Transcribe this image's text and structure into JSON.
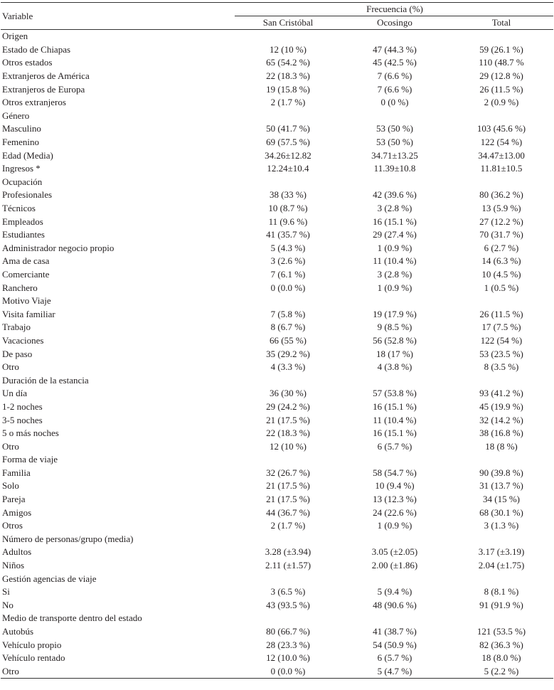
{
  "table": {
    "header": {
      "variable": "Variable",
      "group": "Frecuencia (%)",
      "columns": [
        "San Cristóbal",
        "Ocosingo",
        "Total"
      ]
    },
    "rows": [
      [
        "Origen"
      ],
      [
        "Estado de Chiapas",
        "12 (10 %)",
        "47 (44.3 %)",
        "59 (26.1 %)"
      ],
      [
        "Otros estados",
        "65 (54.2 %)",
        "45 (42.5 %)",
        "110 (48.7 %"
      ],
      [
        "Extranjeros de América",
        "22 (18.3 %)",
        "7 (6.6 %)",
        "29 (12.8 %)"
      ],
      [
        "Extranjeros de Europa",
        "19 (15.8 %)",
        "7 (6.6 %)",
        "26 (11.5 %)"
      ],
      [
        "Otros extranjeros",
        "2 (1.7 %)",
        "0 (0 %)",
        "2 (0.9 %)"
      ],
      [
        "Género"
      ],
      [
        "Masculino",
        "50 (41.7 %)",
        "53 (50 %)",
        "103 (45.6 %)"
      ],
      [
        "Femenino",
        "69 (57.5 %)",
        "53 (50 %)",
        "122 (54 %)"
      ],
      [
        "Edad (Media)",
        "34.26±12.82",
        "34.71±13.25",
        "34.47±13.00"
      ],
      [
        "Ingresos *",
        "12.24±10.4",
        "11.39±10.8",
        "11.81±10.5"
      ],
      [
        "Ocupación"
      ],
      [
        "Profesionales",
        "38 (33 %)",
        "42 (39.6 %)",
        "80 (36.2 %)"
      ],
      [
        "Técnicos",
        "10 (8.7 %)",
        "3 (2.8 %)",
        "13 (5.9 %)"
      ],
      [
        "Empleados",
        "11 (9.6 %)",
        "16 (15.1 %)",
        "27 (12.2 %)"
      ],
      [
        "Estudiantes",
        "41 (35.7 %)",
        "29 (27.4 %)",
        "70 (31.7 %)"
      ],
      [
        "Administrador negocio propio",
        "5 (4.3 %)",
        "1 (0.9 %)",
        "6 (2.7 %)"
      ],
      [
        "Ama de casa",
        "3 (2.6 %)",
        "11 (10.4 %)",
        "14 (6.3 %)"
      ],
      [
        "Comerciante",
        "7 (6.1 %)",
        "3 (2.8 %)",
        "10 (4.5 %)"
      ],
      [
        "Ranchero",
        "0 (0.0 %)",
        "1 (0.9 %)",
        "1 (0.5 %)"
      ],
      [
        "Motivo Viaje"
      ],
      [
        "Visita familiar",
        "7 (5.8 %)",
        "19 (17.9 %)",
        "26 (11.5 %)"
      ],
      [
        "Trabajo",
        "8 (6.7 %)",
        "9 (8.5 %)",
        "17 (7.5 %)"
      ],
      [
        "Vacaciones",
        "66 (55 %)",
        "56 (52.8 %)",
        "122 (54 %)"
      ],
      [
        "De paso",
        "35 (29.2 %)",
        "18 (17 %)",
        "53 (23.5 %)"
      ],
      [
        "Otro",
        "4 (3.3 %)",
        "4 (3.8 %)",
        "8 (3.5 %)"
      ],
      [
        "Duración de la estancia"
      ],
      [
        "Un día",
        "36 (30 %)",
        "57 (53.8 %)",
        "93 (41.2 %)"
      ],
      [
        "1-2 noches",
        "29 (24.2 %)",
        "16 (15.1 %)",
        "45 (19.9 %)"
      ],
      [
        "3-5 noches",
        "21 (17.5 %)",
        "11 (10.4 %)",
        "32 (14.2 %)"
      ],
      [
        "5 o más noches",
        "22 (18.3 %)",
        "16 (15.1 %)",
        "38 (16.8 %)"
      ],
      [
        "Otro",
        "12 (10 %)",
        "6 (5.7 %)",
        "18 (8 %)"
      ],
      [
        "Forma de viaje"
      ],
      [
        "Familia",
        "32 (26.7 %)",
        "58 (54.7 %)",
        "90 (39.8 %)"
      ],
      [
        "Solo",
        "21 (17.5 %)",
        "10 (9.4 %)",
        "31 (13.7 %)"
      ],
      [
        "Pareja",
        "21 (17.5 %)",
        "13 (12.3 %)",
        "34 (15 %)"
      ],
      [
        "Amigos",
        "44 (36.7 %)",
        "24 (22.6 %)",
        "68 (30.1 %)"
      ],
      [
        "Otros",
        "2 (1.7 %)",
        "1 (0.9 %)",
        "3 (1.3 %)"
      ],
      [
        "Número de personas/grupo (media)"
      ],
      [
        "Adultos",
        "3.28 (±3.94)",
        "3.05 (±2.05)",
        "3.17 (±3.19)"
      ],
      [
        "Niños",
        "2.11 (±1.57)",
        "2.00 (±1.86)",
        "2.04 (±1.75)"
      ],
      [
        "Gestión agencias de viaje"
      ],
      [
        "Si",
        "3 (6.5 %)",
        "5 (9.4 %)",
        "8 (8.1 %)"
      ],
      [
        "No",
        "43 (93.5 %)",
        "48 (90.6 %)",
        "91 (91.9 %)"
      ],
      [
        "Medio de transporte dentro del estado"
      ],
      [
        "Autobús",
        "80 (66.7 %)",
        "41 (38.7 %)",
        "121 (53.5 %)"
      ],
      [
        "Vehículo propio",
        "28 (23.3 %)",
        "54 (50.9 %)",
        "82 (36.3 %)"
      ],
      [
        "Vehículo rentado",
        "12 (10.0 %)",
        "6 (5.7 %)",
        "18 (8.0 %)"
      ],
      [
        "Otro",
        "0 (0.0 %)",
        "5 (4.7 %)",
        "5 (2.2 %)"
      ]
    ]
  }
}
